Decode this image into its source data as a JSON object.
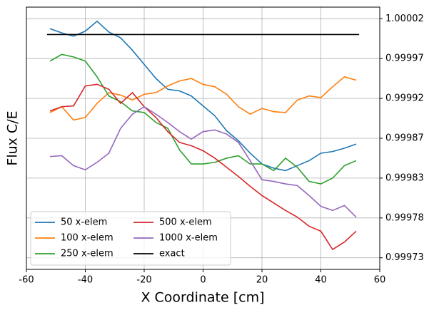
{
  "chart_data": {
    "type": "line",
    "xlabel": "X Coordinate [cm]",
    "ylabel": "Flux C/E",
    "x": [
      -52,
      -48,
      -44,
      -40,
      -36,
      -32,
      -28,
      -24,
      -20,
      -16,
      -12,
      -8,
      -4,
      0,
      4,
      8,
      12,
      16,
      20,
      24,
      28,
      32,
      36,
      40,
      44,
      48,
      52
    ],
    "series": [
      {
        "name": "50 x-elem",
        "color": "#1f77b4",
        "values": [
          1.000006,
          1.000001,
          0.999997,
          1.000003,
          1.000015,
          1.000002,
          0.999995,
          0.99998,
          0.999963,
          0.999946,
          0.999933,
          0.999931,
          0.999925,
          0.999913,
          0.999901,
          0.999883,
          0.999871,
          0.999856,
          0.999843,
          0.999838,
          0.999835,
          0.999841,
          0.999847,
          0.999856,
          0.999858,
          0.999862,
          0.999867
        ]
      },
      {
        "name": "100 x-elem",
        "color": "#ff7f0e",
        "values": [
          0.999905,
          0.999912,
          0.999896,
          0.999899,
          0.999916,
          0.999929,
          0.999926,
          0.99992,
          0.999927,
          0.999929,
          0.999937,
          0.999943,
          0.999946,
          0.999939,
          0.999936,
          0.999927,
          0.999912,
          0.999903,
          0.99991,
          0.999906,
          0.999905,
          0.99992,
          0.999925,
          0.999923,
          0.999936,
          0.999948,
          0.999944
        ]
      },
      {
        "name": "250 x-elem",
        "color": "#2ca02c",
        "values": [
          0.999967,
          0.999975,
          0.999972,
          0.999967,
          0.999948,
          0.999925,
          0.999918,
          0.999907,
          0.999905,
          0.999893,
          0.999886,
          0.99986,
          0.999843,
          0.999843,
          0.999845,
          0.99985,
          0.999853,
          0.999843,
          0.999843,
          0.999835,
          0.99985,
          0.999839,
          0.999822,
          0.999819,
          0.999826,
          0.999841,
          0.999847
        ]
      },
      {
        "name": "500 x-elem",
        "color": "#d62728",
        "values": [
          0.999907,
          0.999912,
          0.999913,
          0.999937,
          0.999939,
          0.999933,
          0.999916,
          0.999929,
          0.999912,
          0.999899,
          0.999882,
          0.999869,
          0.999865,
          0.999859,
          0.99985,
          0.999839,
          0.999828,
          0.999816,
          0.999805,
          0.999796,
          0.999787,
          0.999779,
          0.999768,
          0.999762,
          0.99974,
          0.999749,
          0.999762
        ]
      },
      {
        "name": "1000 x-elem",
        "color": "#9467bd",
        "values": [
          0.999852,
          0.999853,
          0.999841,
          0.999836,
          0.999845,
          0.999856,
          0.999886,
          0.999903,
          0.999912,
          0.999903,
          0.999893,
          0.999882,
          0.999873,
          0.999882,
          0.999884,
          0.999879,
          0.999869,
          0.999847,
          0.999824,
          0.999822,
          0.999819,
          0.999817,
          0.999805,
          0.999792,
          0.999787,
          0.999793,
          0.999779
        ]
      },
      {
        "name": "exact",
        "color": "#000000",
        "x": [
          -53,
          53
        ],
        "values": [
          0.999999,
          0.999999
        ]
      }
    ],
    "xlim": [
      -60,
      60
    ],
    "xticks": [
      -60,
      -40,
      -20,
      0,
      20,
      40,
      60
    ],
    "ylim": [
      0.999716,
      1.000032
    ],
    "yticks": [
      {
        "value": 0.99973,
        "label": "0.99973"
      },
      {
        "value": 0.999778,
        "label": "0.99978"
      },
      {
        "value": 0.999826,
        "label": "0.99983"
      },
      {
        "value": 0.999874,
        "label": "0.99987"
      },
      {
        "value": 0.999922,
        "label": "0.99992"
      },
      {
        "value": 0.99997,
        "label": "0.99997"
      },
      {
        "value": 1.000018,
        "label": "1.00002"
      }
    ],
    "y_axis_side": "right",
    "grid": true,
    "legend": "lower left",
    "legend_columns": 2
  }
}
